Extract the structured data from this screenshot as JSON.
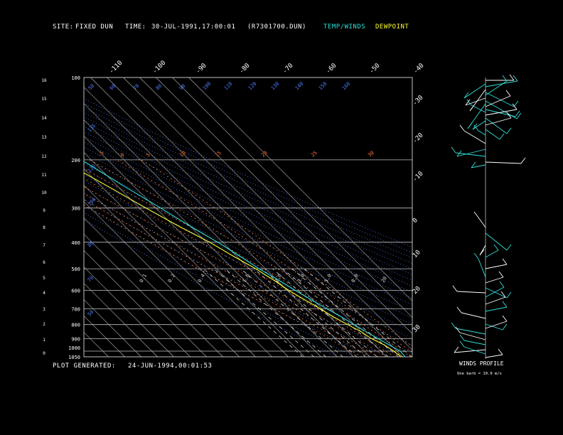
{
  "header": {
    "site_label": "SITE:",
    "site_value": "FIXED DUN",
    "time_label": "TIME:",
    "time_value": "30-JUL-1991,17:00:01",
    "file_id": "(R7301700.DUN)",
    "legend_temp": "TEMP/WINDS",
    "legend_dew": "DEWPOINT"
  },
  "footer": {
    "plot_generated_label": "PLOT GENERATED:",
    "plot_generated_value": "24-JUN-1994,00:01:53"
  },
  "winds_panel": {
    "title": "WINDS PROFILE",
    "scale_note": "One barb = 10.0 m/s"
  },
  "colors": {
    "temp": "#2fe0d8",
    "dewpoint": "#ffff33",
    "isobar": "#bfbfbf",
    "isotherm": "#bfbfbf",
    "dry_adiabat": "#4f7fff",
    "moist_adiabat": "#ff7733",
    "mixing_ratio": "#d9d9d9",
    "background": "#000000"
  },
  "chart_data": {
    "type": "line",
    "subtype": "skew-T log-P sounding",
    "pressure_ticks": [
      "100",
      "200",
      "300",
      "400",
      "500",
      "600",
      "700",
      "800",
      "900",
      "1000",
      "1050"
    ],
    "height_ticks_km": [
      "0",
      "1",
      "2",
      "3",
      "4",
      "5",
      "6",
      "7",
      "8",
      "9",
      "10",
      "11",
      "12",
      "13",
      "14",
      "15",
      "16"
    ],
    "isotherm_labels_top": [
      "-110",
      "-100",
      "-90",
      "-80",
      "-70",
      "-60",
      "-50",
      "-40"
    ],
    "isotherm_labels_right": [
      "-30",
      "-20",
      "-10",
      "0",
      "10",
      "20",
      "30"
    ],
    "moist_labels": [
      "-5",
      "0",
      "5",
      "10",
      "15",
      "20",
      "25",
      "30"
    ],
    "mixing_labels": [
      "0.1",
      "0.2",
      "0.4",
      "1.0",
      "2.0",
      "3.0",
      "5.0",
      "8.0",
      "20"
    ],
    "dry_labels_left": [
      "50",
      "70",
      "80",
      "100",
      "120",
      "135"
    ],
    "dry_labels_top": [
      "50",
      "60",
      "70",
      "80",
      "90",
      "100",
      "110",
      "120",
      "130",
      "140",
      "150",
      "160"
    ],
    "series": [
      {
        "name": "TEMP/WINDS",
        "points": [
          {
            "p": 1050,
            "t": 21.5
          },
          {
            "p": 1000,
            "t": 22
          },
          {
            "p": 950,
            "t": 19
          },
          {
            "p": 900,
            "t": 16
          },
          {
            "p": 850,
            "t": 13
          },
          {
            "p": 800,
            "t": 10
          },
          {
            "p": 750,
            "t": 7
          },
          {
            "p": 700,
            "t": 3
          },
          {
            "p": 650,
            "t": -1
          },
          {
            "p": 600,
            "t": -5
          },
          {
            "p": 550,
            "t": -9
          },
          {
            "p": 500,
            "t": -14
          },
          {
            "p": 450,
            "t": -18
          },
          {
            "p": 400,
            "t": -23
          },
          {
            "p": 350,
            "t": -30
          },
          {
            "p": 300,
            "t": -37
          },
          {
            "p": 250,
            "t": -46
          },
          {
            "p": 200,
            "t": -56
          },
          {
            "p": 180,
            "t": -61
          },
          {
            "p": 160,
            "t": -66
          },
          {
            "p": 140,
            "t": -64
          },
          {
            "p": 120,
            "t": -68
          },
          {
            "p": 110,
            "t": -65
          },
          {
            "p": 100,
            "t": -67
          }
        ]
      },
      {
        "name": "DEWPOINT",
        "points": [
          {
            "p": 1050,
            "t": 19
          },
          {
            "p": 1000,
            "t": 18
          },
          {
            "p": 950,
            "t": 16
          },
          {
            "p": 900,
            "t": 12
          },
          {
            "p": 850,
            "t": 10
          },
          {
            "p": 800,
            "t": 6
          },
          {
            "p": 750,
            "t": 2
          },
          {
            "p": 700,
            "t": -1
          },
          {
            "p": 650,
            "t": -5
          },
          {
            "p": 600,
            "t": -9
          },
          {
            "p": 550,
            "t": -12
          },
          {
            "p": 500,
            "t": -16
          },
          {
            "p": 450,
            "t": -22
          },
          {
            "p": 400,
            "t": -28
          },
          {
            "p": 350,
            "t": -37
          },
          {
            "p": 300,
            "t": -46
          },
          {
            "p": 250,
            "t": -56
          },
          {
            "p": 210,
            "t": -66
          },
          {
            "p": 200,
            "t": -70
          }
        ]
      }
    ]
  }
}
